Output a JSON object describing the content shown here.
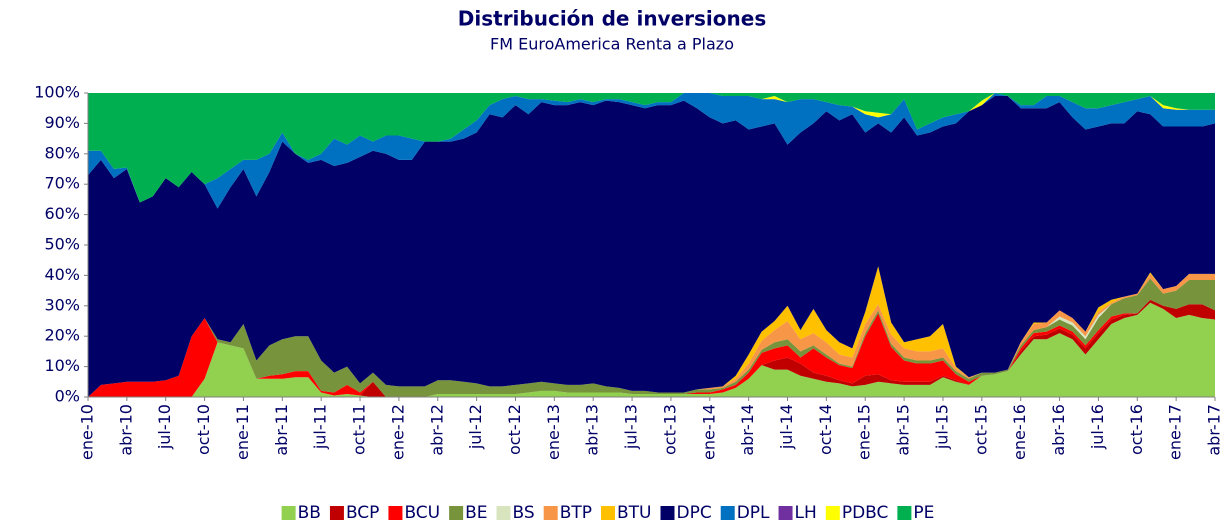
{
  "chart_data": {
    "type": "stacked_area",
    "title": "Distribución de inversiones",
    "subtitle": "FM EuroAmerica Renta a Plazo",
    "categories": [
      "ene-10",
      null,
      null,
      "abr-10",
      null,
      null,
      "jul-10",
      null,
      null,
      "oct-10",
      null,
      null,
      "ene-11",
      null,
      null,
      "abr-11",
      null,
      null,
      "jul-11",
      null,
      null,
      "oct-11",
      null,
      null,
      "ene-12",
      null,
      null,
      "abr-12",
      null,
      null,
      "jul-12",
      null,
      null,
      "oct-12",
      null,
      null,
      "ene-13",
      null,
      null,
      "abr-13",
      null,
      null,
      "jul-13",
      null,
      null,
      "oct-13",
      null,
      null,
      "ene-14",
      null,
      null,
      "abr-14",
      null,
      null,
      "jul-14",
      null,
      null,
      "oct-14",
      null,
      null,
      "ene-15",
      null,
      null,
      "abr-15",
      null,
      null,
      "jul-15",
      null,
      null,
      "oct-15",
      null,
      null,
      "ene-16",
      null,
      null,
      "abr-16",
      null,
      null,
      "jul-16",
      null,
      null,
      "oct-16",
      null,
      null,
      "ene-17",
      null,
      null,
      "abr-17"
    ],
    "ylim": [
      0,
      100
    ],
    "yticks": [
      {
        "value": 0,
        "label": "0%"
      },
      {
        "value": 10,
        "label": "10%"
      },
      {
        "value": 20,
        "label": "20%"
      },
      {
        "value": 30,
        "label": "30%"
      },
      {
        "value": 40,
        "label": "40%"
      },
      {
        "value": 50,
        "label": "50%"
      },
      {
        "value": 60,
        "label": "60%"
      },
      {
        "value": 70,
        "label": "70%"
      },
      {
        "value": 80,
        "label": "80%"
      },
      {
        "value": 90,
        "label": "90%"
      },
      {
        "value": 100,
        "label": "100%"
      }
    ],
    "grid": false,
    "legend": "bottom",
    "series": [
      {
        "name": "BB",
        "color": "#92d050",
        "values": [
          0,
          0,
          0,
          0,
          0,
          0,
          0,
          0,
          0,
          6,
          18,
          17,
          16,
          6,
          6,
          6,
          6.5,
          6.5,
          1.5,
          0.5,
          1,
          0.5,
          0,
          0,
          0,
          0,
          0,
          1,
          1,
          1,
          1,
          1,
          1,
          1,
          1.5,
          2,
          2,
          1.5,
          1.5,
          1.5,
          1.5,
          1.5,
          1,
          1,
          1,
          1,
          1,
          1,
          1,
          1.5,
          3,
          6,
          10.5,
          9,
          9,
          7,
          6,
          5,
          4.5,
          3.5,
          4,
          5,
          4.5,
          4,
          4,
          4,
          6.5,
          5,
          4,
          7,
          7.5,
          8.5,
          14,
          19,
          19,
          21,
          19,
          14,
          19,
          24,
          26,
          27,
          31,
          29,
          26,
          27,
          26,
          25.5
        ]
      },
      {
        "name": "BCP",
        "color": "#c00000",
        "values": [
          0,
          0,
          0,
          0,
          0,
          0,
          0,
          0,
          0,
          0,
          0,
          0,
          0,
          0,
          0,
          0,
          0,
          0,
          0,
          0,
          0,
          0,
          5,
          0,
          0,
          0,
          0,
          0,
          0,
          0,
          0,
          0,
          0,
          0,
          0,
          0,
          0,
          0,
          0,
          0,
          0,
          0,
          0,
          0,
          0,
          0,
          0,
          0,
          0,
          0,
          0,
          0,
          0,
          3,
          4,
          4,
          2,
          2,
          1,
          1,
          3,
          2.5,
          1,
          1,
          1,
          1,
          0.5,
          0.5,
          0,
          0,
          0,
          0,
          1,
          1,
          1.5,
          1.5,
          1.5,
          2,
          2,
          1.5,
          1,
          0.5,
          1,
          1,
          3,
          3.5,
          4.5,
          3
        ]
      },
      {
        "name": "BCU",
        "color": "#ff0000",
        "values": [
          0,
          4,
          4.5,
          5,
          5,
          5,
          5.5,
          7,
          20,
          20,
          0,
          0,
          0,
          0,
          1,
          1.5,
          2,
          2,
          0.5,
          1,
          3,
          1,
          0,
          0,
          0,
          0,
          0,
          0,
          0,
          0,
          0,
          0,
          0,
          0,
          0,
          0,
          0,
          0,
          0,
          0,
          0,
          0,
          0,
          0,
          0,
          0,
          0,
          0.5,
          0.5,
          1,
          1,
          2,
          4,
          4,
          4,
          2,
          8,
          6,
          5,
          5,
          13,
          20,
          11,
          7,
          6,
          6,
          5,
          2,
          1,
          0,
          0,
          0,
          1,
          1,
          1,
          1,
          1,
          1,
          1,
          1,
          0.5,
          0,
          0,
          0,
          0,
          0,
          0,
          0
        ]
      },
      {
        "name": "BE",
        "color": "#77933c",
        "values": [
          0,
          0,
          0,
          0,
          0,
          0,
          0,
          0,
          0,
          0,
          1,
          1,
          8,
          6,
          10,
          11.5,
          11.5,
          11.5,
          10,
          6.5,
          6,
          3,
          3,
          4,
          3.5,
          3.5,
          3.5,
          4.5,
          4.5,
          4,
          3.5,
          2.5,
          2.5,
          3,
          3,
          3,
          2.5,
          2.5,
          2.5,
          3,
          2,
          1.5,
          1,
          1,
          0.5,
          0.5,
          0.5,
          1,
          1,
          0.5,
          1,
          1,
          1,
          2,
          2,
          2,
          1,
          1,
          0.5,
          0.5,
          1,
          1,
          1,
          1,
          1,
          1,
          1,
          1,
          1,
          1,
          0.5,
          0.5,
          1,
          1,
          1.5,
          2,
          2,
          2,
          4,
          4,
          5,
          6,
          7,
          4,
          6,
          8,
          8,
          10
        ]
      },
      {
        "name": "BS",
        "color": "#d7e4bd",
        "values": [
          0,
          0,
          0,
          0,
          0,
          0,
          0,
          0,
          0,
          0,
          0,
          0,
          0,
          0,
          0,
          0,
          0,
          0,
          0,
          0,
          0,
          0,
          0,
          0,
          0,
          0,
          0,
          0,
          0,
          0,
          0,
          0,
          0,
          0,
          0,
          0,
          0,
          0,
          0,
          0,
          0,
          0,
          0,
          0,
          0,
          0,
          0,
          0,
          0,
          0,
          0,
          0,
          0,
          0,
          0,
          0,
          0,
          0,
          0,
          0,
          0,
          0,
          0,
          0,
          0,
          0,
          0,
          0,
          0,
          0,
          0,
          0,
          0,
          0,
          0,
          1,
          1,
          1,
          1,
          0,
          0,
          0,
          0,
          0,
          0,
          0,
          0,
          0
        ]
      },
      {
        "name": "BTP",
        "color": "#f79646",
        "values": [
          0,
          0,
          0,
          0,
          0,
          0,
          0,
          0,
          0,
          0,
          0,
          0,
          0,
          0,
          0,
          0,
          0,
          0,
          0,
          0,
          0,
          0,
          0,
          0,
          0,
          0,
          0,
          0,
          0,
          0,
          0,
          0,
          0,
          0,
          0,
          0,
          0,
          0,
          0,
          0,
          0,
          0,
          0,
          0,
          0,
          0,
          0,
          0,
          0.5,
          0.5,
          1,
          2,
          3,
          4,
          6,
          4,
          4,
          4,
          3,
          3,
          3,
          2,
          3,
          3,
          3,
          3,
          3,
          1,
          0.5,
          0,
          0,
          0,
          1,
          2,
          1.5,
          2,
          1.5,
          1.5,
          1,
          0.5,
          0.5,
          0.5,
          1.5,
          1.5,
          1.5,
          2,
          2,
          2
        ]
      },
      {
        "name": "BTU",
        "color": "#ffc000",
        "values": [
          0,
          0,
          0,
          0,
          0,
          0,
          0,
          0,
          0,
          0,
          0,
          0,
          0,
          0,
          0,
          0,
          0,
          0,
          0,
          0,
          0,
          0,
          0,
          0,
          0,
          0,
          0,
          0,
          0,
          0,
          0,
          0,
          0,
          0,
          0,
          0,
          0,
          0,
          0,
          0,
          0,
          0,
          0,
          0,
          0,
          0,
          0,
          0,
          0,
          0,
          1,
          3,
          3,
          3,
          5,
          3,
          8,
          4,
          4,
          3,
          4,
          12.5,
          4,
          2,
          4,
          5,
          8,
          0.5,
          0,
          0,
          0,
          0,
          0,
          0.5,
          0,
          0,
          0,
          0,
          1.5,
          1,
          0,
          0,
          0.5,
          0,
          0,
          0,
          0,
          0
        ]
      },
      {
        "name": "DPC",
        "color": "#000066",
        "values": [
          73,
          74,
          67.5,
          70,
          59,
          61,
          66.5,
          62,
          54,
          44,
          43,
          51,
          51,
          54,
          57,
          65,
          60,
          57,
          66,
          68,
          67,
          74.5,
          73,
          76,
          74.5,
          74.5,
          80.5,
          78.5,
          78.5,
          80,
          82.5,
          89.5,
          88.5,
          92,
          88.5,
          92,
          91.5,
          92,
          93,
          91.5,
          94,
          94,
          94,
          93,
          94.5,
          94.5,
          96,
          92.5,
          89,
          86.5,
          84,
          74,
          67.5,
          65,
          53,
          65,
          61,
          72,
          73,
          77,
          59,
          47,
          62.5,
          74,
          67,
          67,
          65,
          80,
          87.5,
          88,
          91,
          90,
          77,
          70.5,
          70.5,
          68.5,
          66,
          66.5,
          59.5,
          58,
          57,
          60,
          52,
          53.5,
          52.5,
          48.5,
          48.5,
          49.5
        ]
      },
      {
        "name": "DPL",
        "color": "#0070c0",
        "values": [
          8,
          3,
          3,
          0.5,
          0,
          0,
          0,
          0,
          0,
          0,
          10,
          6,
          3,
          12,
          6,
          3,
          0,
          1,
          2,
          9,
          6,
          7,
          3,
          6,
          8,
          7,
          0,
          0,
          1,
          3,
          4,
          3,
          6,
          3,
          5,
          1,
          1.5,
          1,
          1,
          1,
          0.5,
          1,
          1,
          1,
          1,
          1,
          2.5,
          5,
          8,
          9,
          8,
          11,
          9,
          8,
          14,
          11,
          8,
          3,
          5,
          2.5,
          6,
          2,
          6,
          6,
          2,
          3,
          3,
          3,
          0,
          0,
          1,
          0,
          1,
          1,
          4,
          2,
          5,
          7,
          6,
          6,
          7,
          4,
          6,
          6,
          5.5,
          5.5,
          5.5,
          4.5
        ]
      },
      {
        "name": "LH",
        "color": "#7030a0",
        "values": [
          0,
          0,
          0,
          0,
          0,
          0,
          0,
          0,
          0,
          0,
          0,
          0,
          0,
          0,
          0,
          0,
          0,
          0,
          0,
          0,
          0,
          0,
          0,
          0,
          0,
          0,
          0,
          0,
          0,
          0,
          0,
          0,
          0,
          0,
          0,
          0,
          0,
          0,
          0,
          0,
          0,
          0,
          0,
          0,
          0,
          0,
          0,
          0,
          0,
          0,
          0,
          0,
          0,
          0,
          0,
          0,
          0,
          0,
          0,
          0,
          0,
          0,
          0,
          0,
          0,
          0,
          0,
          0,
          0,
          0,
          0,
          0,
          0,
          0,
          0,
          0,
          0,
          0,
          0,
          0,
          0,
          0,
          0,
          0,
          0,
          0,
          0,
          0
        ]
      },
      {
        "name": "PDBC",
        "color": "#ffff00",
        "values": [
          0,
          0,
          0,
          0,
          0,
          0,
          0,
          0,
          0,
          0,
          0,
          0,
          0,
          0,
          0,
          0,
          0,
          0,
          0,
          0,
          0,
          0,
          0,
          0,
          0,
          0,
          0,
          0,
          0,
          0,
          0,
          0,
          0,
          0,
          0,
          0,
          0,
          0,
          0,
          0,
          0,
          0,
          0,
          0,
          0,
          0,
          0,
          0,
          0,
          0,
          0,
          0,
          0,
          1,
          0,
          0,
          0,
          0,
          0,
          0,
          1,
          1.5,
          0,
          0,
          0,
          0,
          0,
          0,
          0,
          1.5,
          0,
          0,
          0,
          0,
          0,
          0,
          0,
          0,
          0,
          0,
          0,
          0,
          0,
          1,
          0.5,
          0,
          0,
          0
        ]
      },
      {
        "name": "PE",
        "color": "#00b050",
        "values": [
          19,
          19,
          25,
          24.5,
          36,
          34,
          28,
          31,
          26,
          30,
          28,
          25,
          22,
          22,
          20,
          13,
          20,
          22,
          20,
          15,
          17,
          14,
          16,
          14,
          14,
          15,
          16,
          16,
          15,
          12,
          9,
          4,
          2,
          1,
          2,
          2,
          2.5,
          3,
          2,
          3,
          2,
          2,
          3,
          4,
          3,
          3,
          0,
          0,
          0,
          1,
          1,
          1,
          2,
          1,
          3,
          2,
          2,
          3,
          4,
          4.5,
          6,
          6.5,
          7,
          2,
          12,
          10,
          8,
          7,
          6,
          2.5,
          0,
          1,
          4,
          4,
          1,
          1,
          3,
          5,
          5,
          4,
          3,
          2,
          1,
          4,
          5,
          5.5,
          5.5,
          5.5
        ]
      }
    ]
  }
}
